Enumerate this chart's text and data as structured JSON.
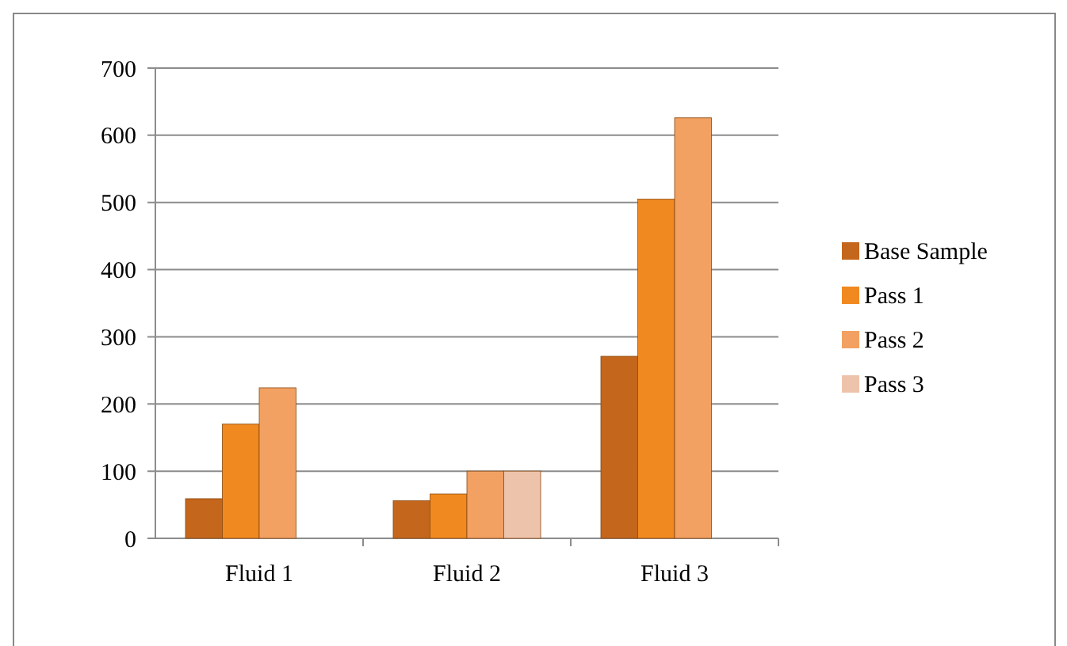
{
  "chart_data": {
    "type": "bar",
    "categories": [
      "Fluid 1",
      "Fluid 2",
      "Fluid 3"
    ],
    "series": [
      {
        "name": "Base Sample",
        "color": "#c4661c",
        "values": [
          59,
          56,
          271
        ]
      },
      {
        "name": "Pass 1",
        "color": "#f0891f",
        "values": [
          170,
          66,
          505
        ]
      },
      {
        "name": "Pass 2",
        "color": "#f2a162",
        "values": [
          224,
          100,
          626
        ]
      },
      {
        "name": "Pass 3",
        "color": "#eec3ac",
        "values": [
          null,
          100,
          null
        ]
      }
    ],
    "ylim": [
      0,
      700
    ],
    "yticks": [
      0,
      100,
      200,
      300,
      400,
      500,
      600,
      700
    ],
    "grid": "y",
    "legend": "right"
  }
}
